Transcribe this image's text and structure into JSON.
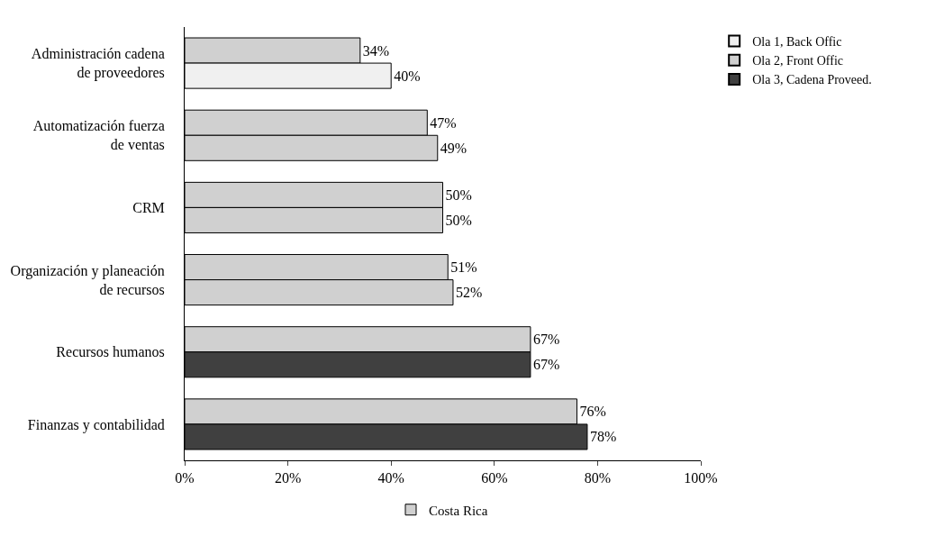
{
  "chart_data": {
    "type": "bar",
    "orientation": "horizontal",
    "categories": [
      "Administración cadena de proveedores",
      "Automatización fuerza de ventas",
      "CRM",
      "Organización y planeación de recursos",
      "Recursos humanos",
      "Finanzas y contabilidad"
    ],
    "series": [
      {
        "name": "Costa Rica",
        "color": "#d0d0d0",
        "values": [
          34,
          47,
          50,
          51,
          67,
          76
        ],
        "value_labels": [
          "34%",
          "47%",
          "50%",
          "51%",
          "67%",
          "76%"
        ]
      },
      {
        "colors": [
          "#f0f0f0",
          "#d0d0d0",
          "#d0d0d0",
          "#d0d0d0",
          "#404040",
          "#404040"
        ],
        "values": [
          40,
          49,
          50,
          52,
          67,
          78
        ],
        "value_labels": [
          "40%",
          "49%",
          "50%",
          "52%",
          "67%",
          "78%"
        ]
      },
      {
        "name": "Ola 1, Back Offic",
        "color": "#f0f0f0",
        "values": [
          null,
          null,
          null,
          null,
          null,
          null
        ]
      },
      {
        "name": "Ola 2, Front Offic",
        "color": "#d0d0d0",
        "values": [
          null,
          null,
          null,
          null,
          null,
          null
        ]
      },
      {
        "name": "Ola 3, Cadena Proveed.",
        "color": "#404040",
        "values": [
          null,
          null,
          null,
          null,
          null,
          null
        ]
      }
    ],
    "xlim": [
      0,
      100
    ],
    "xticks": [
      {
        "value": 0,
        "label": "0%"
      },
      {
        "value": 20,
        "label": "20%"
      },
      {
        "value": 40,
        "label": "40%"
      },
      {
        "value": 60,
        "label": "60%"
      },
      {
        "value": 80,
        "label": "80%"
      },
      {
        "value": 100,
        "label": "100%"
      }
    ],
    "legend": "right"
  }
}
